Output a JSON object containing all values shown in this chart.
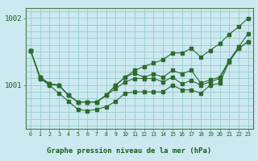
{
  "title": "Graphe pression niveau de la mer (hPa)",
  "background_color": "#cce8f0",
  "plot_bg_color": "#cce8f0",
  "line_color": "#2d6b2d",
  "grid_color": "#99cccc",
  "axis_color": "#4a7a4a",
  "text_color": "#1a5c1a",
  "xlim": [
    -0.5,
    23.5
  ],
  "ylim": [
    1000.35,
    1002.15
  ],
  "yticks": [
    1001,
    1002
  ],
  "xticks": [
    0,
    1,
    2,
    3,
    4,
    5,
    6,
    7,
    8,
    9,
    10,
    11,
    12,
    13,
    14,
    15,
    16,
    17,
    18,
    19,
    20,
    21,
    22,
    23
  ],
  "s_top": [
    1001.52,
    1001.12,
    1001.02,
    1001.0,
    1000.85,
    1000.75,
    1000.75,
    1000.75,
    1000.85,
    1001.0,
    1001.12,
    1001.22,
    1001.28,
    1001.33,
    1001.38,
    1001.48,
    1001.48,
    1001.55,
    1001.42,
    1001.52,
    1001.62,
    1001.76,
    1001.87,
    1002.0
  ],
  "s_mid_top": [
    1001.52,
    1001.12,
    1001.02,
    1001.0,
    1000.85,
    1000.75,
    1000.75,
    1000.75,
    1000.85,
    1001.0,
    1001.12,
    1001.18,
    1001.12,
    1001.17,
    1001.12,
    1001.22,
    1001.17,
    1001.22,
    1001.03,
    1001.08,
    1001.12,
    1001.37,
    1001.57,
    1001.77
  ],
  "s_mid": [
    1001.52,
    1001.12,
    1001.02,
    1001.0,
    1000.85,
    1000.75,
    1000.75,
    1000.75,
    1000.85,
    1000.95,
    1001.05,
    1001.1,
    1001.1,
    1001.1,
    1001.05,
    1001.12,
    1001.02,
    1001.07,
    1001.0,
    1001.05,
    1001.1,
    1001.35,
    1001.55,
    1001.65
  ],
  "s_bot": [
    1001.52,
    1001.1,
    1001.0,
    1000.88,
    1000.76,
    1000.64,
    1000.62,
    1000.64,
    1000.68,
    1000.76,
    1000.88,
    1000.9,
    1000.9,
    1000.9,
    1000.9,
    1001.0,
    1000.93,
    1000.93,
    1000.88,
    1001.0,
    1001.03,
    1001.35,
    1001.55,
    1001.65
  ]
}
